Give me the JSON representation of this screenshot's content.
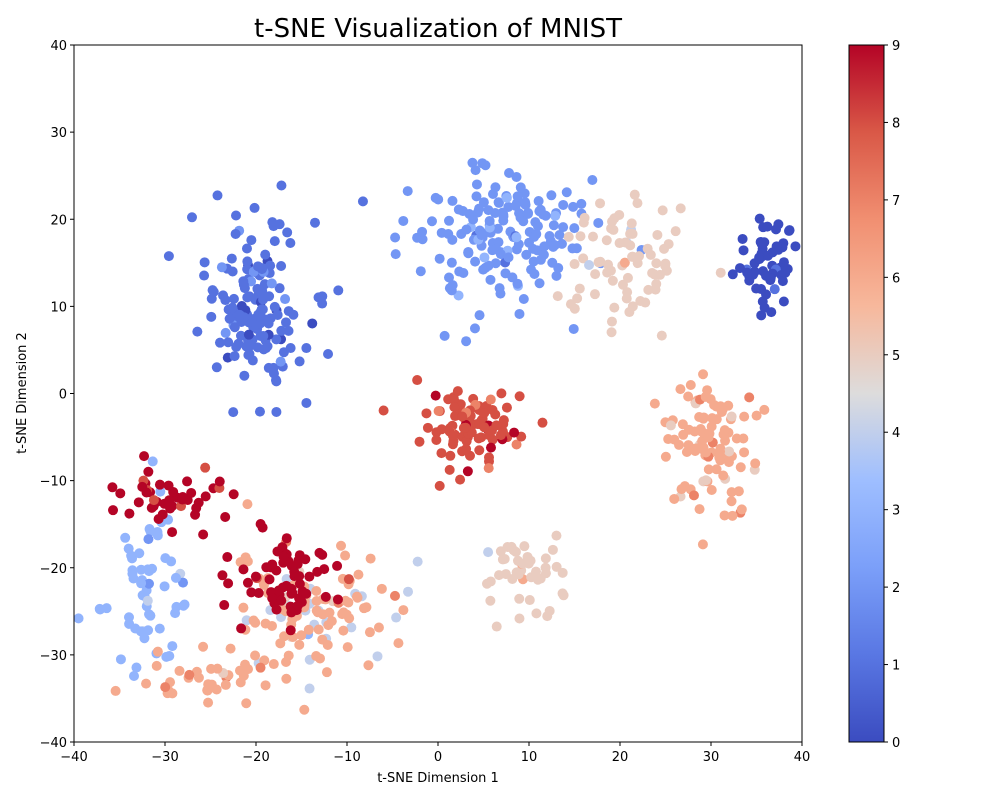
{
  "chart_data": {
    "type": "scatter",
    "title": "t-SNE Visualization of MNIST",
    "xlabel": "t-SNE Dimension 1",
    "ylabel": "t-SNE Dimension 2",
    "xlim": [
      -40,
      40
    ],
    "ylim": [
      -40,
      40
    ],
    "xticks": [
      "−40",
      "−30",
      "−20",
      "−10",
      "0",
      "10",
      "20",
      "30",
      "40"
    ],
    "yticks": [
      "−40",
      "−30",
      "−20",
      "−10",
      "0",
      "10",
      "20",
      "30",
      "40"
    ],
    "grid": false,
    "colormap": "coolwarm",
    "colorbar": {
      "min": 0,
      "max": 9,
      "ticks": [
        "0",
        "1",
        "2",
        "3",
        "4",
        "5",
        "6",
        "7",
        "8",
        "9"
      ]
    },
    "clusters": [
      {
        "label": 0,
        "center": [
          36,
          15
        ],
        "spread": [
          3.5,
          5.0
        ],
        "count": 55
      },
      {
        "label": 1,
        "center": [
          -20,
          10
        ],
        "spread": [
          5.5,
          10.0
        ],
        "count": 150
      },
      {
        "label": 2,
        "center": [
          6,
          18
        ],
        "spread": [
          10.0,
          8.0
        ],
        "count": 170
      },
      {
        "label": 3,
        "center": [
          -32,
          -22
        ],
        "spread": [
          5.0,
          9.0
        ],
        "count": 60
      },
      {
        "label": 4,
        "center": [
          -15,
          -25
        ],
        "spread": [
          10.0,
          10.0
        ],
        "count": 25
      },
      {
        "label": 5,
        "center": [
          20,
          15
        ],
        "spread": [
          8.0,
          8.0
        ],
        "count": 75
      },
      {
        "label": 5,
        "center": [
          9,
          -20
        ],
        "spread": [
          4.5,
          4.0
        ],
        "count": 45
      },
      {
        "label": 6,
        "center": [
          30,
          -6
        ],
        "spread": [
          5.5,
          8.0
        ],
        "count": 105
      },
      {
        "label": 6,
        "center": [
          -14,
          -25
        ],
        "spread": [
          9.0,
          7.0
        ],
        "count": 95
      },
      {
        "label": 6,
        "center": [
          -26,
          -33
        ],
        "spread": [
          6.0,
          3.0
        ],
        "count": 35
      },
      {
        "label": 8,
        "center": [
          4,
          -4
        ],
        "spread": [
          6.0,
          4.5
        ],
        "count": 95
      },
      {
        "label": 9,
        "center": [
          -30,
          -12
        ],
        "spread": [
          8.0,
          3.5
        ],
        "count": 45
      },
      {
        "label": 9,
        "center": [
          -16,
          -21
        ],
        "spread": [
          6.0,
          5.0
        ],
        "count": 65
      }
    ]
  }
}
